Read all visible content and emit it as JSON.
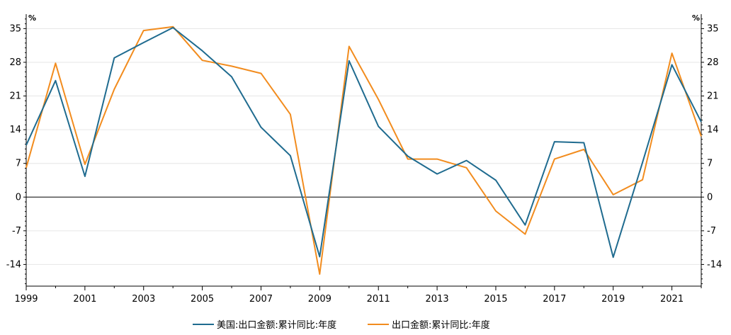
{
  "chart_data": {
    "type": "line",
    "x": [
      1999,
      2000,
      2001,
      2002,
      2003,
      2004,
      2005,
      2006,
      2007,
      2008,
      2009,
      2010,
      2011,
      2012,
      2013,
      2014,
      2015,
      2016,
      2017,
      2018,
      2019,
      2020,
      2021,
      2022
    ],
    "x_tick_labels": [
      "1999",
      "2001",
      "2003",
      "2005",
      "2007",
      "2009",
      "2011",
      "2013",
      "2015",
      "2017",
      "2019",
      "2021"
    ],
    "y_ticks": [
      35,
      28,
      21,
      14,
      7,
      0,
      -7,
      -14
    ],
    "y_tick_labels": [
      "35",
      "28",
      "21",
      "14",
      "7",
      "0",
      "-7",
      "-14"
    ],
    "ylim": [
      -18.5,
      38
    ],
    "left_unit": "%",
    "right_unit": "%",
    "grid": true,
    "legend_position": "bottom",
    "series": [
      {
        "name": "美国:出口金额:累计同比:年度",
        "color": "#1f6b8f",
        "values": [
          10.8,
          24.2,
          4.3,
          28.9,
          32.1,
          35.2,
          30.4,
          25.0,
          14.5,
          8.6,
          -12.4,
          28.3,
          14.7,
          8.5,
          4.8,
          7.6,
          3.5,
          -5.8,
          11.5,
          11.3,
          -12.5,
          7.2,
          27.5,
          15.6
        ]
      },
      {
        "name": "出口金额:累计同比:年度",
        "color": "#f28c1e",
        "values": [
          6.1,
          27.8,
          6.8,
          22.4,
          34.6,
          35.4,
          28.4,
          27.2,
          25.7,
          17.2,
          -16.0,
          31.3,
          20.3,
          7.9,
          7.9,
          6.1,
          -2.9,
          -7.7,
          7.9,
          9.9,
          0.5,
          3.6,
          29.9,
          12.6
        ]
      }
    ]
  }
}
